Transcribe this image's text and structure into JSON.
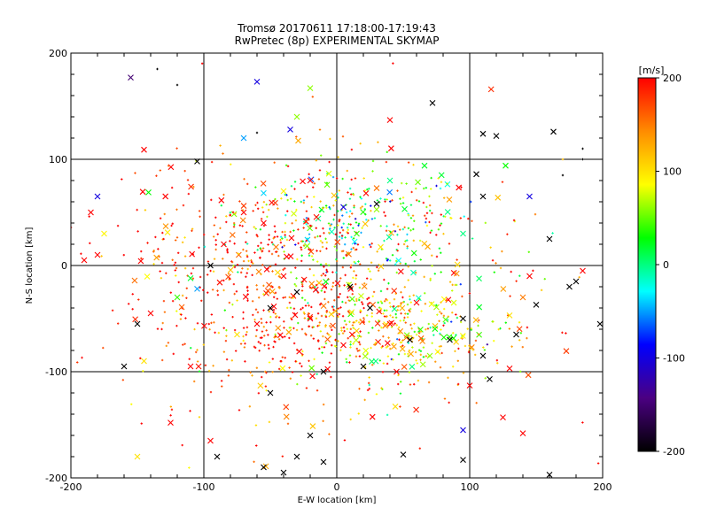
{
  "chart_data": {
    "type": "scatter",
    "title": "Tromsø 20170611 17:18:00-17:19:43",
    "subtitle": "RwPretec (8p) EXPERIMENTAL SKYMAP",
    "xlabel": "E-W location [km]",
    "ylabel": "N-S location [km]",
    "xlim": [
      -200,
      200
    ],
    "ylim": [
      -200,
      200
    ],
    "x_ticks": [
      "-200",
      "-100",
      "0",
      "100",
      "200"
    ],
    "y_ticks": [
      "-200",
      "-100",
      "0",
      "100",
      "200"
    ],
    "grid": true,
    "colorbar": {
      "label": "[m/s]",
      "range": [
        -200,
        200
      ],
      "ticks": [
        "200",
        "100",
        "0",
        "-100",
        "-200"
      ],
      "colormap": [
        "#000000",
        "#4b0082",
        "#0000ff",
        "#00ffff",
        "#00ff00",
        "#ffff00",
        "#ff8c00",
        "#ff0000"
      ]
    },
    "marker_legend": {
      "cross": "large marker",
      "dot": "small marker"
    },
    "points": [
      {
        "x": -155,
        "y": 177,
        "v": -150,
        "m": "x"
      },
      {
        "x": -135,
        "y": 185,
        "v": -200,
        "m": "."
      },
      {
        "x": -120,
        "y": 170,
        "v": -200,
        "m": "."
      },
      {
        "x": -60,
        "y": 173,
        "v": -100,
        "m": "x"
      },
      {
        "x": -20,
        "y": 167,
        "v": 60,
        "m": "x"
      },
      {
        "x": -30,
        "y": 140,
        "v": 60,
        "m": "x"
      },
      {
        "x": -35,
        "y": 128,
        "v": -100,
        "m": "x"
      },
      {
        "x": -70,
        "y": 120,
        "v": -50,
        "m": "x"
      },
      {
        "x": 72,
        "y": 153,
        "v": -200,
        "m": "x"
      },
      {
        "x": 40,
        "y": 137,
        "v": 200,
        "m": "x"
      },
      {
        "x": 110,
        "y": 124,
        "v": -200,
        "m": "x"
      },
      {
        "x": 120,
        "y": 122,
        "v": -200,
        "m": "x"
      },
      {
        "x": 163,
        "y": 126,
        "v": -200,
        "m": "x"
      },
      {
        "x": -145,
        "y": 109,
        "v": 200,
        "m": "x"
      },
      {
        "x": -105,
        "y": 98,
        "v": -200,
        "m": "x"
      },
      {
        "x": 127,
        "y": 94,
        "v": 30,
        "m": "x"
      },
      {
        "x": 66,
        "y": 94,
        "v": 20,
        "m": "x"
      },
      {
        "x": 105,
        "y": 86,
        "v": -200,
        "m": "x"
      },
      {
        "x": -180,
        "y": 65,
        "v": -100,
        "m": "x"
      },
      {
        "x": -185,
        "y": 50,
        "v": 200,
        "m": "x"
      },
      {
        "x": -175,
        "y": 30,
        "v": 90,
        "m": "x"
      },
      {
        "x": -180,
        "y": 10,
        "v": 200,
        "m": "x"
      },
      {
        "x": -190,
        "y": 5,
        "v": 200,
        "m": "x"
      },
      {
        "x": -110,
        "y": -12,
        "v": 20,
        "m": "x"
      },
      {
        "x": -105,
        "y": -22,
        "v": -50,
        "m": "x"
      },
      {
        "x": -120,
        "y": -30,
        "v": 40,
        "m": "x"
      },
      {
        "x": -140,
        "y": -45,
        "v": 200,
        "m": "x"
      },
      {
        "x": -150,
        "y": -55,
        "v": -200,
        "m": "x"
      },
      {
        "x": -145,
        "y": -90,
        "v": 100,
        "m": "x"
      },
      {
        "x": -160,
        "y": -95,
        "v": -200,
        "m": "x"
      },
      {
        "x": -125,
        "y": -148,
        "v": 200,
        "m": "x"
      },
      {
        "x": -95,
        "y": -165,
        "v": 200,
        "m": "x"
      },
      {
        "x": -90,
        "y": -180,
        "v": -200,
        "m": "x"
      },
      {
        "x": -150,
        "y": -180,
        "v": 100,
        "m": "x"
      },
      {
        "x": -55,
        "y": -190,
        "v": -200,
        "m": "x"
      },
      {
        "x": -40,
        "y": -195,
        "v": -200,
        "m": "x"
      },
      {
        "x": -30,
        "y": -180,
        "v": -200,
        "m": "x"
      },
      {
        "x": -20,
        "y": -160,
        "v": -200,
        "m": "x"
      },
      {
        "x": -10,
        "y": -185,
        "v": -200,
        "m": "x"
      },
      {
        "x": 50,
        "y": -178,
        "v": -200,
        "m": "x"
      },
      {
        "x": 95,
        "y": -183,
        "v": -200,
        "m": "x"
      },
      {
        "x": 95,
        "y": -155,
        "v": -100,
        "m": "x"
      },
      {
        "x": 140,
        "y": -158,
        "v": 200,
        "m": "x"
      },
      {
        "x": 125,
        "y": -143,
        "v": 200,
        "m": "x"
      },
      {
        "x": 160,
        "y": -197,
        "v": -200,
        "m": "x"
      },
      {
        "x": 130,
        "y": -97,
        "v": 200,
        "m": "x"
      },
      {
        "x": 115,
        "y": -107,
        "v": -200,
        "m": "x"
      },
      {
        "x": 100,
        "y": -113,
        "v": 200,
        "m": "x"
      },
      {
        "x": 110,
        "y": -85,
        "v": -200,
        "m": "x"
      },
      {
        "x": 135,
        "y": -65,
        "v": -200,
        "m": "x"
      },
      {
        "x": 130,
        "y": -47,
        "v": 100,
        "m": "x"
      },
      {
        "x": 150,
        "y": -37,
        "v": -200,
        "m": "x"
      },
      {
        "x": 140,
        "y": -30,
        "v": 150,
        "m": "x"
      },
      {
        "x": 145,
        "y": -10,
        "v": 200,
        "m": "x"
      },
      {
        "x": 175,
        "y": -20,
        "v": -200,
        "m": "x"
      },
      {
        "x": 185,
        "y": -5,
        "v": 200,
        "m": "x"
      },
      {
        "x": 180,
        "y": -15,
        "v": -200,
        "m": "x"
      },
      {
        "x": 198,
        "y": -55,
        "v": -200,
        "m": "x"
      },
      {
        "x": 145,
        "y": 65,
        "v": -100,
        "m": "x"
      },
      {
        "x": 160,
        "y": 25,
        "v": -200,
        "m": "x"
      },
      {
        "x": 110,
        "y": 65,
        "v": -200,
        "m": "x"
      },
      {
        "x": 95,
        "y": 30,
        "v": 0,
        "m": "x"
      },
      {
        "x": 40,
        "y": 80,
        "v": 0,
        "m": "x"
      },
      {
        "x": 30,
        "y": 58,
        "v": -200,
        "m": "x"
      },
      {
        "x": 22,
        "y": 68,
        "v": 200,
        "m": "x"
      },
      {
        "x": 15,
        "y": 30,
        "v": 40,
        "m": "x"
      },
      {
        "x": 5,
        "y": 55,
        "v": -100,
        "m": "x"
      },
      {
        "x": -20,
        "y": 80,
        "v": 200,
        "m": "x"
      },
      {
        "x": -40,
        "y": 70,
        "v": 90,
        "m": "x"
      },
      {
        "x": -55,
        "y": 40,
        "v": 200,
        "m": "x"
      },
      {
        "x": -70,
        "y": 50,
        "v": 200,
        "m": "x"
      },
      {
        "x": -85,
        "y": 20,
        "v": 200,
        "m": "x"
      },
      {
        "x": -95,
        "y": 0,
        "v": -200,
        "m": "x"
      },
      {
        "x": -40,
        "y": -10,
        "v": 200,
        "m": "x"
      },
      {
        "x": -30,
        "y": -25,
        "v": -200,
        "m": "x"
      },
      {
        "x": -50,
        "y": -40,
        "v": -200,
        "m": "x"
      },
      {
        "x": -60,
        "y": -55,
        "v": 200,
        "m": "x"
      },
      {
        "x": -75,
        "y": -65,
        "v": 100,
        "m": "x"
      },
      {
        "x": -20,
        "y": -50,
        "v": 200,
        "m": "x"
      },
      {
        "x": 10,
        "y": -20,
        "v": -200,
        "m": "x"
      },
      {
        "x": 25,
        "y": -40,
        "v": -200,
        "m": "x"
      },
      {
        "x": 40,
        "y": -55,
        "v": 200,
        "m": "x"
      },
      {
        "x": 55,
        "y": -70,
        "v": -200,
        "m": "x"
      },
      {
        "x": 70,
        "y": -85,
        "v": 60,
        "m": "x"
      },
      {
        "x": 85,
        "y": -70,
        "v": -200,
        "m": "x"
      },
      {
        "x": 95,
        "y": -50,
        "v": -200,
        "m": "x"
      },
      {
        "x": 60,
        "y": -35,
        "v": 200,
        "m": "x"
      },
      {
        "x": 5,
        "y": -75,
        "v": 200,
        "m": "x"
      },
      {
        "x": -10,
        "y": -100,
        "v": -200,
        "m": "x"
      },
      {
        "x": 20,
        "y": -95,
        "v": -200,
        "m": "x"
      },
      {
        "x": 45,
        "y": -100,
        "v": 200,
        "m": "x"
      },
      {
        "x": -50,
        "y": -120,
        "v": -200,
        "m": "x"
      },
      {
        "x": -110,
        "y": -95,
        "v": 200,
        "m": "x"
      },
      {
        "x": -60,
        "y": 125,
        "v": -200,
        "m": "."
      },
      {
        "x": 75,
        "y": 75,
        "v": -100,
        "m": "."
      },
      {
        "x": 170,
        "y": 85,
        "v": -200,
        "m": "."
      },
      {
        "x": 185,
        "y": 110,
        "v": -200,
        "m": "."
      },
      {
        "x": 185,
        "y": 100,
        "v": -200,
        "m": "."
      },
      {
        "x": 170,
        "y": 100,
        "v": 120,
        "m": "."
      }
    ],
    "dense_clusters": [
      {
        "cx": 15,
        "cy": 40,
        "sx": 45,
        "sy": 25,
        "vmean": 20,
        "n": 260
      },
      {
        "cx": 45,
        "cy": -60,
        "sx": 45,
        "sy": 25,
        "vmean": 90,
        "n": 320
      },
      {
        "cx": -45,
        "cy": -45,
        "sx": 50,
        "sy": 40,
        "vmean": 180,
        "n": 340
      },
      {
        "cx": -60,
        "cy": 30,
        "sx": 55,
        "sy": 30,
        "vmean": 190,
        "n": 180
      },
      {
        "cx": 0,
        "cy": -30,
        "sx": 70,
        "sy": 60,
        "vmean": 150,
        "n": 220
      },
      {
        "cx": 0,
        "cy": 0,
        "sx": 110,
        "sy": 90,
        "vmean": 200,
        "n": 160
      }
    ]
  }
}
